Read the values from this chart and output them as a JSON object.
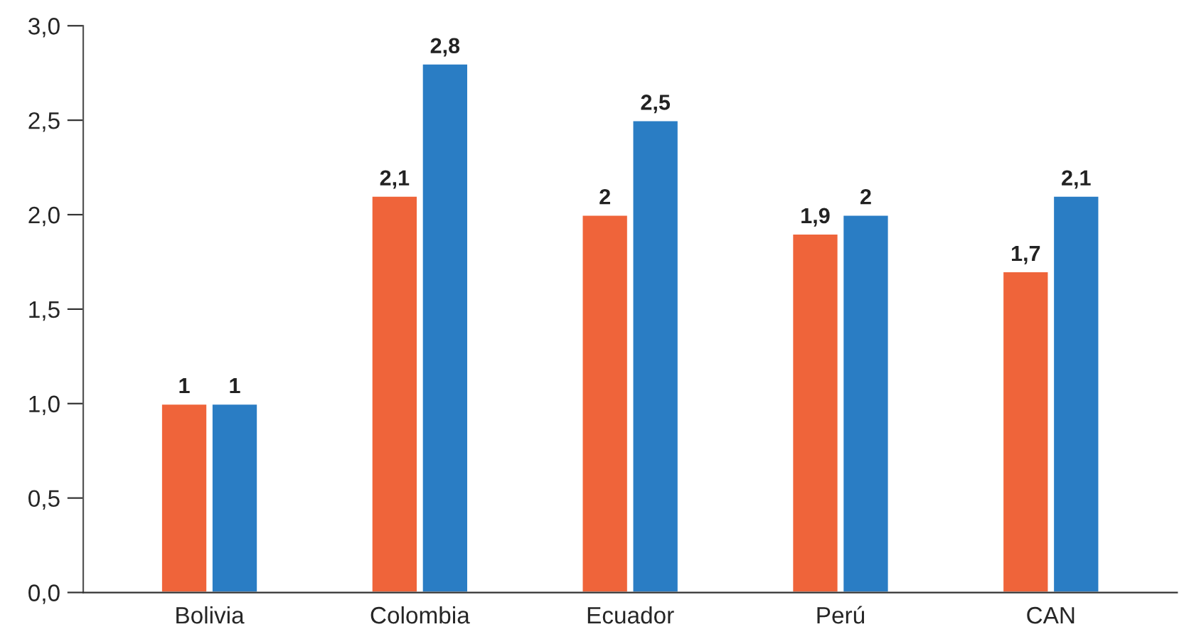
{
  "chart_data": {
    "type": "bar",
    "categories": [
      "Bolivia",
      "Colombia",
      "Ecuador",
      "Perú",
      "CAN"
    ],
    "series": [
      {
        "color": "#ef643a",
        "values": [
          1,
          2.1,
          2,
          1.9,
          1.7
        ],
        "value_labels": [
          "1",
          "2,1",
          "2",
          "1,9",
          "1,7"
        ]
      },
      {
        "color": "#2a7dc4",
        "values": [
          1,
          2.8,
          2.5,
          2,
          2.1
        ],
        "value_labels": [
          "1",
          "2,8",
          "2,5",
          "2",
          "2,1"
        ]
      }
    ],
    "ylim": [
      0,
      3.0
    ],
    "yticks": [
      {
        "value": 0,
        "label": "0,0"
      },
      {
        "value": 0.5,
        "label": "0,5"
      },
      {
        "value": 1.0,
        "label": "1,0"
      },
      {
        "value": 1.5,
        "label": "1,5"
      },
      {
        "value": 2.0,
        "label": "2,0"
      },
      {
        "value": 2.5,
        "label": "2,5"
      },
      {
        "value": 3.0,
        "label": "3,0"
      }
    ],
    "grid": false,
    "legend": false
  }
}
